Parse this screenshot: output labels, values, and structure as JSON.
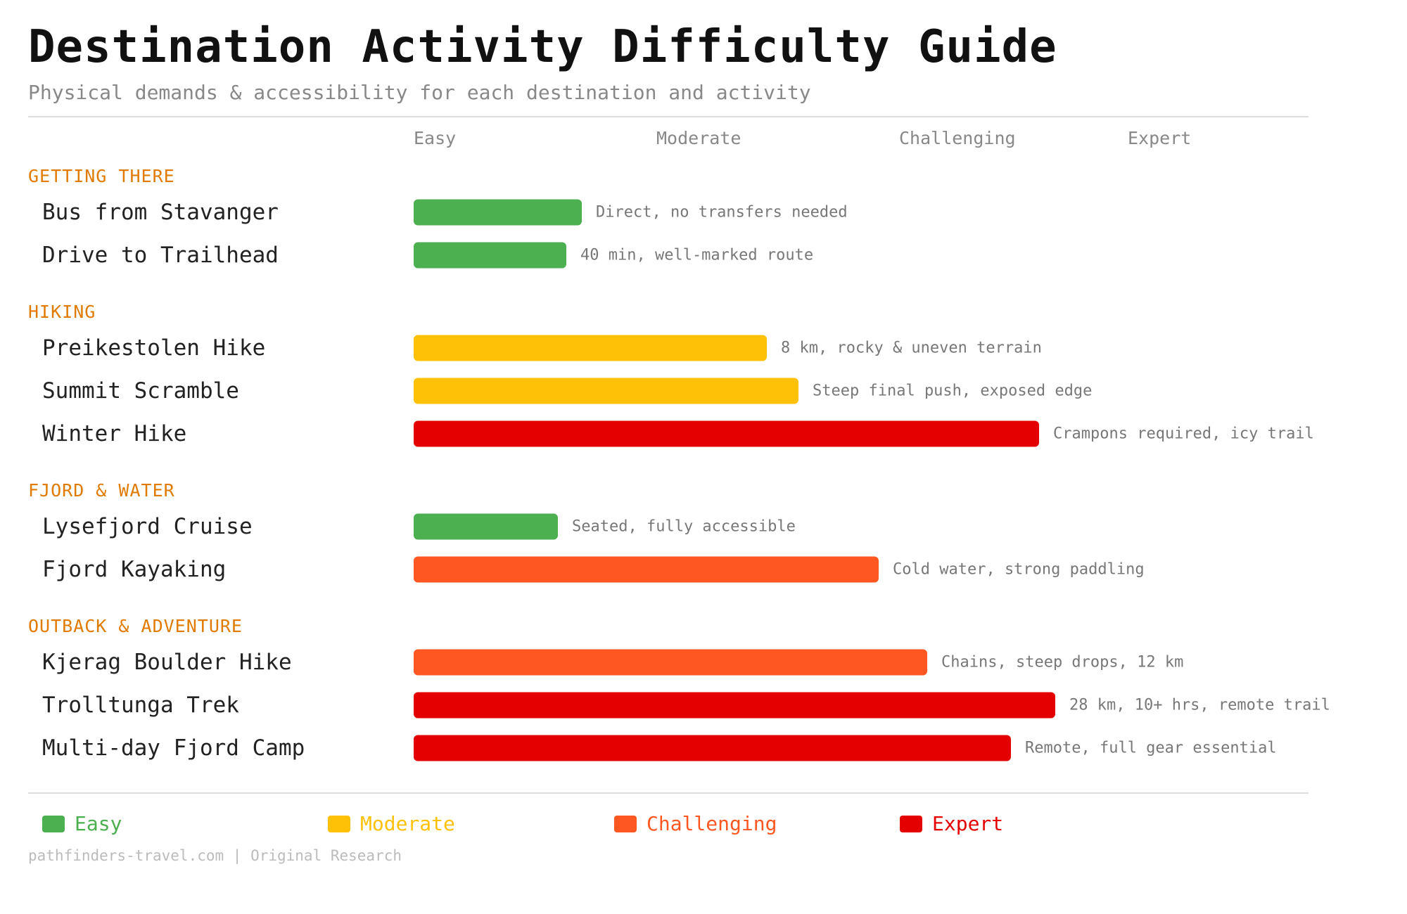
{
  "chart_data": {
    "type": "bar",
    "orientation": "horizontal",
    "title": "Destination Activity Difficulty Guide",
    "subtitle": "Physical demands & accessibility for each destination and activity",
    "scale_labels": [
      "Easy",
      "Moderate",
      "Challenging",
      "Expert"
    ],
    "xlim": [
      0,
      1
    ],
    "grid": false,
    "legend_position": "bottom",
    "sections": [
      {
        "name": "GETTING THERE",
        "items": [
          {
            "label": "Bus from Stavanger",
            "level": "Easy",
            "value": 0.21,
            "note": "Direct, no transfers needed"
          },
          {
            "label": "Drive to Trailhead",
            "level": "Easy",
            "value": 0.19,
            "note": "40 min, well-marked route"
          }
        ]
      },
      {
        "name": "HIKING",
        "items": [
          {
            "label": "Preikestolen Hike",
            "level": "Moderate",
            "value": 0.44,
            "note": "8 km, rocky & uneven terrain"
          },
          {
            "label": "Summit Scramble",
            "level": "Moderate",
            "value": 0.48,
            "note": "Steep final push, exposed edge"
          },
          {
            "label": "Winter Hike",
            "level": "Expert",
            "value": 0.78,
            "note": "Crampons required, icy trail"
          }
        ]
      },
      {
        "name": "FJORD & WATER",
        "items": [
          {
            "label": "Lysefjord Cruise",
            "level": "Easy",
            "value": 0.18,
            "note": "Seated, fully accessible"
          },
          {
            "label": "Fjord Kayaking",
            "level": "Challenging",
            "value": 0.58,
            "note": "Cold water, strong paddling"
          }
        ]
      },
      {
        "name": "OUTBACK & ADVENTURE",
        "items": [
          {
            "label": "Kjerag Boulder Hike",
            "level": "Challenging",
            "value": 0.64,
            "note": "Chains, steep drops, 12 km"
          },
          {
            "label": "Trolltunga Trek",
            "level": "Expert",
            "value": 0.8,
            "note": "28 km, 10+ hrs, remote trail"
          },
          {
            "label": "Multi-day Fjord Camp",
            "level": "Expert",
            "value": 0.745,
            "note": "Remote, full gear essential"
          }
        ]
      }
    ],
    "legend": [
      {
        "label": "Easy",
        "color": "#4caf50"
      },
      {
        "label": "Moderate",
        "color": "#ffc107"
      },
      {
        "label": "Challenging",
        "color": "#ff5722"
      },
      {
        "label": "Expert",
        "color": "#e50000"
      }
    ],
    "colors": {
      "Easy": "#4caf50",
      "Moderate": "#ffc107",
      "Challenging": "#ff5722",
      "Expert": "#e50000",
      "section_heading": "#e07b00"
    }
  },
  "footer": "pathfinders-travel.com | Original Research"
}
